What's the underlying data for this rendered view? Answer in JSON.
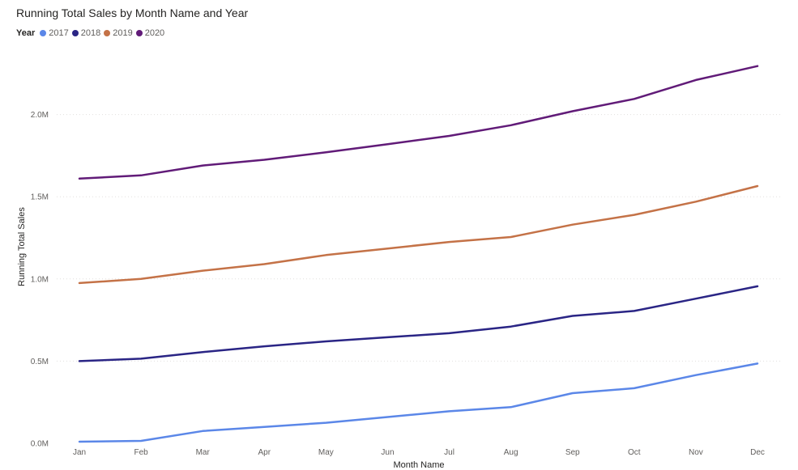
{
  "chart_data": {
    "type": "line",
    "title": "Running Total Sales by Month Name and Year",
    "xlabel": "Month Name",
    "ylabel": "Running Total Sales",
    "legend_title": "Year",
    "legend_position": "top-left",
    "grid": true,
    "categories": [
      "Jan",
      "Feb",
      "Mar",
      "Apr",
      "May",
      "Jun",
      "Jul",
      "Aug",
      "Sep",
      "Oct",
      "Nov",
      "Dec"
    ],
    "ylim": [
      0,
      2500000
    ],
    "yticks": [
      {
        "value": 0,
        "label": "0.0M"
      },
      {
        "value": 500000,
        "label": "0.5M"
      },
      {
        "value": 1000000,
        "label": "1.0M"
      },
      {
        "value": 1500000,
        "label": "1.5M"
      },
      {
        "value": 2000000,
        "label": "2.0M"
      }
    ],
    "series": [
      {
        "name": "2017",
        "color": "#5b87e8",
        "values": [
          10000,
          15000,
          75000,
          100000,
          125000,
          160000,
          195000,
          220000,
          305000,
          335000,
          415000,
          485000
        ]
      },
      {
        "name": "2018",
        "color": "#2a2585",
        "values": [
          500000,
          515000,
          555000,
          590000,
          620000,
          645000,
          670000,
          710000,
          775000,
          805000,
          880000,
          955000
        ]
      },
      {
        "name": "2019",
        "color": "#c47247",
        "values": [
          975000,
          1000000,
          1050000,
          1090000,
          1145000,
          1185000,
          1225000,
          1255000,
          1330000,
          1390000,
          1470000,
          1565000
        ]
      },
      {
        "name": "2020",
        "color": "#611b78",
        "values": [
          1610000,
          1630000,
          1690000,
          1725000,
          1770000,
          1820000,
          1870000,
          1935000,
          2020000,
          2095000,
          2210000,
          2295000
        ]
      }
    ]
  }
}
